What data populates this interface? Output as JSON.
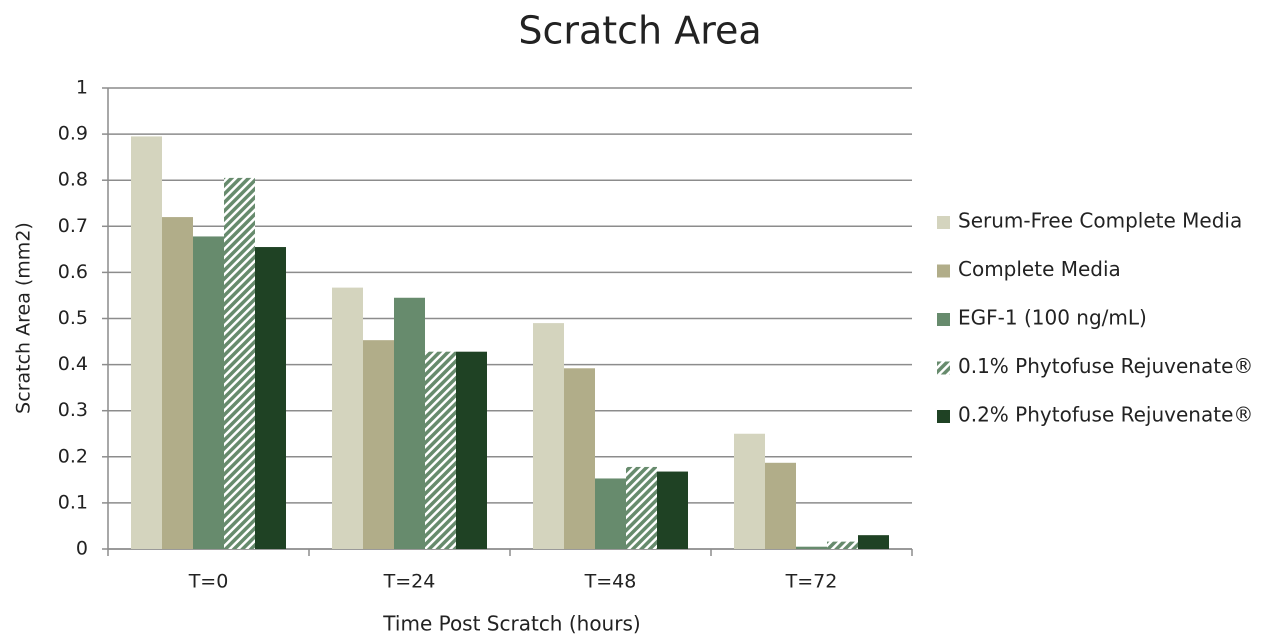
{
  "chart_data": {
    "type": "bar",
    "title": "Scratch Area",
    "x_label": "Time Post Scratch (hours)",
    "y_label": "Scratch Area (mm2)",
    "categories": [
      "T=0",
      "T=24",
      "T=48",
      "T=72"
    ],
    "series": [
      {
        "name": "Serum-Free Complete Media",
        "color": "#d4d4be",
        "values": [
          0.895,
          0.567,
          0.49,
          0.25
        ]
      },
      {
        "name": "Complete Media",
        "color": "#b1ad89",
        "values": [
          0.72,
          0.453,
          0.392,
          0.187
        ]
      },
      {
        "name": "EGF-1 (100 ng/mL)",
        "color": "#678b6d",
        "values": [
          0.678,
          0.545,
          0.153,
          0.005
        ]
      },
      {
        "name": "0.1% Phytofuse Rejuvenate®",
        "color": "#678b6d",
        "pattern": "hatch",
        "values": [
          0.805,
          0.428,
          0.178,
          0.016
        ]
      },
      {
        "name": "0.2% Phytofuse Rejuvenate®",
        "color": "#1f4224",
        "values": [
          0.655,
          0.428,
          0.168,
          0.03
        ]
      }
    ],
    "ylim": [
      0,
      1
    ],
    "yticks": [
      0,
      0.1,
      0.2,
      0.3,
      0.4,
      0.5,
      0.6,
      0.7,
      0.8,
      0.9,
      1
    ],
    "grid": true,
    "legend": "right"
  }
}
